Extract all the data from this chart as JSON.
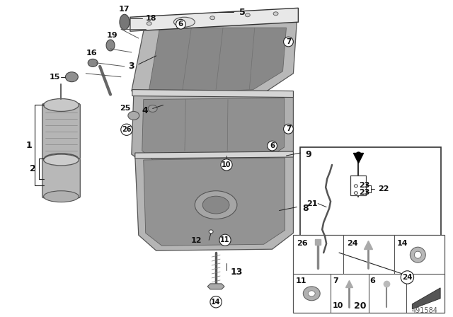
{
  "bg_color": "#ffffff",
  "part_number": "491584",
  "line_color": "#222222",
  "gray_light": "#d0d0d0",
  "gray_mid": "#a0a0a0",
  "gray_dark": "#707070",
  "gray_fill": "#c0c0c0",
  "font_size_label": 9,
  "font_size_small": 7,
  "font_size_num": 8
}
